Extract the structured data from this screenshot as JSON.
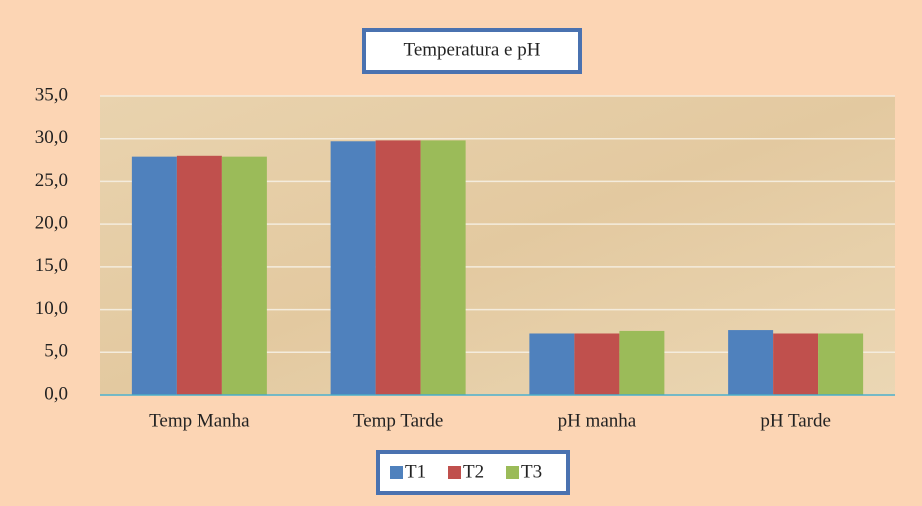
{
  "chart_data": {
    "type": "bar",
    "title": "Temperatura e pH",
    "categories": [
      "Temp Manha",
      "Temp Tarde",
      "pH manha",
      "pH Tarde"
    ],
    "series": [
      {
        "name": "T1",
        "color": "#4f81bd",
        "values": [
          27.9,
          29.7,
          7.2,
          7.6
        ]
      },
      {
        "name": "T2",
        "color": "#c0504d",
        "values": [
          28.0,
          29.8,
          7.2,
          7.2
        ]
      },
      {
        "name": "T3",
        "color": "#9bbb59",
        "values": [
          27.9,
          29.8,
          7.5,
          7.2
        ]
      }
    ],
    "ylim": [
      0,
      35
    ],
    "yticks": [
      {
        "value": 0,
        "label": "0,0"
      },
      {
        "value": 5,
        "label": "5,0"
      },
      {
        "value": 10,
        "label": "10,0"
      },
      {
        "value": 15,
        "label": "15,0"
      },
      {
        "value": 20,
        "label": "20,0"
      },
      {
        "value": 25,
        "label": "25,0"
      },
      {
        "value": 30,
        "label": "30,0"
      },
      {
        "value": 35,
        "label": "35,0"
      }
    ],
    "grid": true,
    "legend": "bottom"
  }
}
